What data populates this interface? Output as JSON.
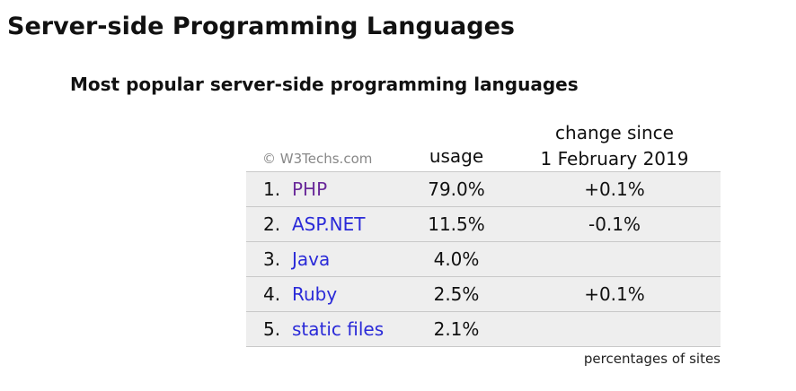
{
  "header": {
    "title": "Server-side Programming Languages"
  },
  "table": {
    "subtitle": "Most popular server-side programming languages",
    "credit": "© W3Techs.com",
    "columns": {
      "usage": "usage",
      "change": [
        "change since",
        "1 February 2019"
      ]
    },
    "rows": [
      {
        "rank": "1.",
        "name": "PHP",
        "usage": "79.0%",
        "change": "+0.1%"
      },
      {
        "rank": "2.",
        "name": "ASP.NET",
        "usage": "11.5%",
        "change": "-0.1%"
      },
      {
        "rank": "3.",
        "name": "Java",
        "usage": "4.0%"
      },
      {
        "rank": "4.",
        "name": "Ruby",
        "usage": "2.5%",
        "change": "+0.1%"
      },
      {
        "rank": "5.",
        "name": "static files",
        "usage": "2.1%"
      }
    ],
    "footer": "percentages of sites"
  }
}
